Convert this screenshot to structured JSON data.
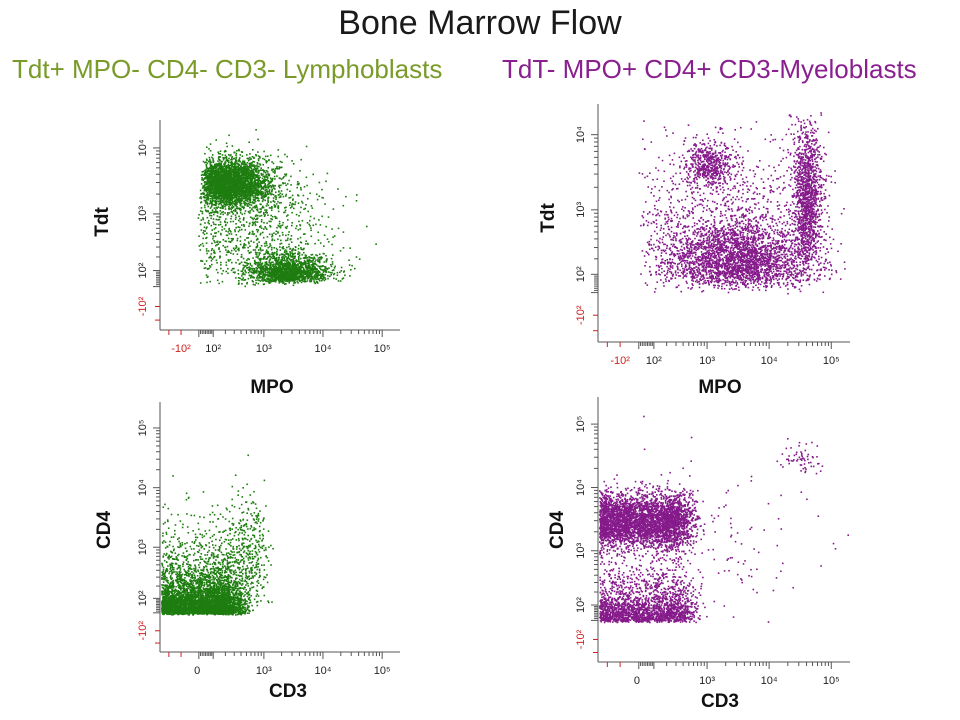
{
  "slide": {
    "title": "Bone Marrow Flow",
    "subtitle_left": "Tdt+ MPO- CD4- CD3- Lymphoblasts",
    "subtitle_right": "TdT- MPO+ CD4+ CD3-Myeloblasts",
    "colors": {
      "lymphoblast": "#1e7d10",
      "myeloblast": "#851a8a",
      "negative_tick": "#d02020"
    }
  },
  "chart_data": [
    {
      "type": "scatter",
      "id": "lympho-tdt-mpo",
      "title": "",
      "xlabel": "MPO",
      "ylabel": "Tdt",
      "color": "#1e7d10",
      "x_ticks": [
        "-10²",
        "10²",
        "10³",
        "10⁴",
        "10⁵"
      ],
      "y_ticks": [
        "-10²",
        "10²",
        "10³",
        "10⁴"
      ],
      "scale": "logicle",
      "populations": [
        {
          "name": "Tdt+ MPO-",
          "center": [
            250,
            3000
          ],
          "spread": [
            0.35,
            0.18
          ],
          "count": 3200
        },
        {
          "name": "Tdt lo MPO+",
          "center": [
            2500,
            100
          ],
          "spread": [
            0.35,
            0.2
          ],
          "count": 1600
        },
        {
          "name": "scatter",
          "center": [
            600,
            600
          ],
          "spread": [
            0.7,
            0.5
          ],
          "count": 900
        }
      ]
    },
    {
      "type": "scatter",
      "id": "myelo-tdt-mpo",
      "title": "",
      "xlabel": "MPO",
      "ylabel": "Tdt",
      "color": "#851a8a",
      "x_ticks": [
        "-10²",
        "10²",
        "10³",
        "10⁴",
        "10⁵"
      ],
      "y_ticks": [
        "-10²",
        "10²",
        "10³",
        "10⁴"
      ],
      "scale": "logicle",
      "populations": [
        {
          "name": "MPO+ Tdt-",
          "center": [
            3000,
            200
          ],
          "spread": [
            0.6,
            0.3
          ],
          "count": 2600
        },
        {
          "name": "MPO hi Tdt rising",
          "center": [
            40000,
            1500
          ],
          "spread": [
            0.12,
            0.5
          ],
          "count": 1300
        },
        {
          "name": "Tdt+ MPO lo",
          "center": [
            1000,
            4000
          ],
          "spread": [
            0.2,
            0.15
          ],
          "count": 500
        },
        {
          "name": "scatter",
          "center": [
            2000,
            800
          ],
          "spread": [
            0.8,
            0.6
          ],
          "count": 900
        }
      ]
    },
    {
      "type": "scatter",
      "id": "lympho-cd4-cd3",
      "title": "",
      "xlabel": "CD3",
      "ylabel": "CD4",
      "color": "#1e7d10",
      "x_ticks": [
        "0",
        "10³",
        "10⁴",
        "10⁵"
      ],
      "y_ticks": [
        "-10²",
        "10²",
        "10³",
        "10⁴",
        "10⁵"
      ],
      "scale": "logicle",
      "populations": [
        {
          "name": "CD4- CD3-",
          "center": [
            0,
            80
          ],
          "spread": [
            200,
            0.45
          ],
          "count": 4200
        },
        {
          "name": "tail",
          "center": [
            300,
            800
          ],
          "spread": [
            400,
            0.5
          ],
          "count": 700
        }
      ]
    },
    {
      "type": "scatter",
      "id": "myelo-cd4-cd3",
      "title": "",
      "xlabel": "CD3",
      "ylabel": "CD4",
      "color": "#851a8a",
      "x_ticks": [
        "0",
        "10³",
        "10⁴",
        "10⁵"
      ],
      "y_ticks": [
        "-10²",
        "10²",
        "10³",
        "10⁴",
        "10⁵"
      ],
      "scale": "logicle",
      "populations": [
        {
          "name": "CD4+ CD3-",
          "center": [
            0,
            3000
          ],
          "spread": [
            250,
            0.22
          ],
          "count": 4200
        },
        {
          "name": "CD4 lo CD3-",
          "center": [
            0,
            80
          ],
          "spread": [
            250,
            0.45
          ],
          "count": 2200
        },
        {
          "name": "CD4+ CD3+",
          "center": [
            30000,
            30000
          ],
          "spread": [
            0.15,
            0.12
          ],
          "count": 60
        },
        {
          "name": "scatter",
          "center": [
            1500,
            1500
          ],
          "spread": [
            0.9,
            0.8
          ],
          "count": 120
        }
      ]
    }
  ]
}
